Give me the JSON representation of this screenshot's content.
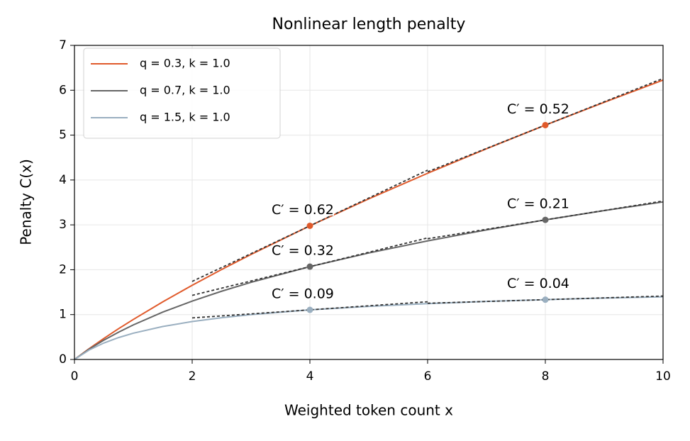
{
  "chart_data": {
    "type": "line",
    "title": "Nonlinear length penalty",
    "x_label": "Weighted token count x",
    "y_label": "Penalty C(x)",
    "xlim": [
      0,
      10
    ],
    "xticks": [
      0,
      2,
      4,
      6,
      8,
      10
    ],
    "ylim": [
      0,
      7
    ],
    "yticks": [
      0,
      1,
      2,
      3,
      4,
      5,
      6,
      7
    ],
    "grid": true,
    "legend": "upper left",
    "x": [
      0,
      0.25,
      0.5,
      0.75,
      1,
      1.5,
      2,
      2.5,
      3,
      4,
      5,
      6,
      7,
      8,
      9,
      10
    ],
    "series": [
      {
        "name": "q = 0.3, k = 1.0",
        "color": "#e05a2b",
        "values": [
          0,
          0.241,
          0.469,
          0.686,
          0.892,
          1.284,
          1.654,
          2.005,
          2.341,
          2.979,
          3.579,
          4.15,
          4.696,
          5.223,
          5.731,
          6.226
        ],
        "markers": {
          "x": [
            4,
            8
          ],
          "values": [
            2.979,
            5.223
          ]
        },
        "tangents": [
          {
            "x": [
              2,
              6
            ],
            "slope": 0.62,
            "label": "C′ = 0.62"
          },
          {
            "x": [
              6,
              10
            ],
            "slope": 0.52,
            "label": "C′ = 0.52"
          }
        ]
      },
      {
        "name": "q = 0.7, k = 1.0",
        "color": "#666666",
        "values": [
          0,
          0.231,
          0.431,
          0.609,
          0.77,
          1.055,
          1.301,
          1.521,
          1.719,
          2.069,
          2.373,
          2.643,
          2.887,
          3.111,
          3.318,
          3.511
        ],
        "markers": {
          "x": [
            4,
            8
          ],
          "values": [
            2.069,
            3.111
          ]
        },
        "tangents": [
          {
            "x": [
              2,
              6
            ],
            "slope": 0.32,
            "label": "C′ = 0.32"
          },
          {
            "x": [
              6,
              10
            ],
            "slope": 0.21,
            "label": "C′ = 0.21"
          }
        ]
      },
      {
        "name": "q = 1.5, k = 1.0",
        "color": "#9aafc0",
        "values": [
          0,
          0.211,
          0.367,
          0.488,
          0.586,
          0.735,
          0.845,
          0.931,
          1.0,
          1.106,
          1.184,
          1.244,
          1.293,
          1.333,
          1.368,
          1.397
        ],
        "markers": {
          "x": [
            4,
            8
          ],
          "values": [
            1.106,
            1.333
          ]
        },
        "tangents": [
          {
            "x": [
              2,
              6
            ],
            "slope": 0.09,
            "label": "C′ = 0.09"
          },
          {
            "x": [
              6,
              10
            ],
            "slope": 0.04,
            "label": "C′ = 0.04"
          }
        ]
      }
    ]
  }
}
